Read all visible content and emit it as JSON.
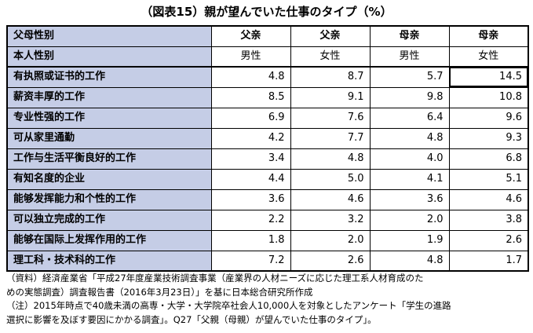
{
  "title": "（図表15）親が望んでいた仕事のタイプ（%）",
  "header": {
    "row1_label": "父母性别",
    "row1": [
      "父亲",
      "父亲",
      "母亲",
      "母亲"
    ],
    "row2_label": "本人性别",
    "row2": [
      "男性",
      "女性",
      "男性",
      "女性"
    ]
  },
  "rows": [
    {
      "label": "有执照或证书的工作",
      "values": [
        "4.8",
        "8.7",
        "5.7",
        "14.5"
      ]
    },
    {
      "label": "薪资丰厚的工作",
      "values": [
        "8.5",
        "9.1",
        "9.8",
        "10.8"
      ]
    },
    {
      "label": "专业性强的工作",
      "values": [
        "6.9",
        "7.6",
        "6.4",
        "9.6"
      ]
    },
    {
      "label": "可从家里通勤",
      "values": [
        "4.2",
        "7.7",
        "4.8",
        "9.3"
      ]
    },
    {
      "label": "工作与生活平衡良好的工作",
      "values": [
        "3.4",
        "4.8",
        "4.0",
        "6.8"
      ]
    },
    {
      "label": "有知名度的企业",
      "values": [
        "4.4",
        "5.0",
        "4.1",
        "5.1"
      ]
    },
    {
      "label": "能够发挥能力和个性的工作",
      "values": [
        "3.6",
        "4.6",
        "3.6",
        "4.6"
      ]
    },
    {
      "label": "可以独立完成的工作",
      "values": [
        "2.2",
        "3.2",
        "2.0",
        "3.8"
      ]
    },
    {
      "label": "能够在国际上发挥作用的工作",
      "values": [
        "1.8",
        "2.0",
        "1.9",
        "2.6"
      ]
    },
    {
      "label": "理工科・技术科的工作",
      "values": [
        "7.2",
        "2.6",
        "4.8",
        "1.7"
      ]
    }
  ],
  "notes": [
    "（資料）経済産業省「平成27年度産業技術調査事業（産業界の人材ニーズに応じた理工系人材育成のた",
    "めの実態調査）調査報告書（2016年3月23日）」を基に日本総合研究所作成",
    "（注）2015年時点で40歳未満の高専・大学・大学院卒社会人10,000人を対象としたアンケート「学生の進路",
    "選択に影響を及ぼす要因にかかる調査」。Q27「父親（母親）が望んでいた仕事のタイプ」。"
  ]
}
